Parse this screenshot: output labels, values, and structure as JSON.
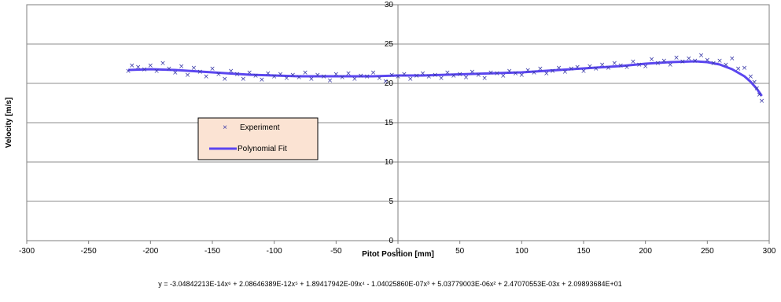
{
  "chart_data": {
    "type": "scatter",
    "xlabel": "Pitot Position  [mm]",
    "ylabel": "Velocity [m/s]",
    "xlim": [
      -300,
      300
    ],
    "ylim": [
      0,
      30
    ],
    "x_ticks": [
      -300,
      -250,
      -200,
      -150,
      -100,
      -50,
      0,
      50,
      100,
      150,
      200,
      250,
      300
    ],
    "y_ticks": [
      0,
      5,
      10,
      15,
      20,
      25,
      30
    ],
    "grid": "horizontal",
    "equation": "y = -3.04842213E-14x⁶ + 2.08646389E-12x⁵ + 1.89417942E-09x⁴ - 1.04025860E-07x³ + 5.03779003E-06x² + 2.47070553E-03x + 2.09893684E+01",
    "legend": {
      "position": "left",
      "entries": [
        "Experiment",
        "Polynomial Fit"
      ]
    },
    "colors": {
      "marker": "#3a3aa8",
      "fit": "#5b46f0",
      "legend_bg": "#fbe3d3",
      "grid": "#8c8c8c"
    },
    "series": [
      {
        "name": "Experiment",
        "marker": "x",
        "x": [
          -218,
          -215,
          -210,
          -205,
          -200,
          -195,
          -190,
          -185,
          -180,
          -175,
          -170,
          -165,
          -160,
          -155,
          -150,
          -145,
          -140,
          -135,
          -130,
          -125,
          -120,
          -115,
          -110,
          -105,
          -100,
          -95,
          -90,
          -85,
          -80,
          -75,
          -70,
          -65,
          -60,
          -55,
          -50,
          -45,
          -40,
          -35,
          -30,
          -25,
          -20,
          -15,
          -10,
          -5,
          0,
          5,
          10,
          15,
          20,
          25,
          30,
          35,
          40,
          45,
          50,
          55,
          60,
          65,
          70,
          75,
          80,
          85,
          90,
          95,
          100,
          105,
          110,
          115,
          120,
          125,
          130,
          135,
          140,
          145,
          150,
          155,
          160,
          165,
          170,
          175,
          180,
          185,
          190,
          195,
          200,
          205,
          210,
          215,
          220,
          225,
          230,
          235,
          240,
          245,
          250,
          255,
          260,
          265,
          270,
          275,
          280,
          285,
          288,
          290,
          292,
          294
        ],
        "y": [
          21.6,
          22.3,
          22.1,
          21.8,
          22.3,
          21.6,
          22.6,
          21.9,
          21.4,
          22.2,
          21.1,
          22.0,
          21.5,
          20.9,
          21.9,
          21.2,
          20.6,
          21.6,
          21.2,
          20.6,
          21.4,
          21.0,
          20.5,
          21.3,
          20.9,
          21.2,
          20.7,
          21.1,
          20.8,
          21.4,
          20.6,
          21.1,
          20.9,
          20.4,
          21.2,
          20.8,
          21.3,
          20.6,
          21.0,
          20.9,
          21.4,
          20.7,
          20.3,
          21.1,
          20.9,
          21.2,
          20.6,
          21.0,
          21.3,
          20.9,
          21.1,
          20.7,
          21.4,
          21.0,
          21.2,
          20.8,
          21.5,
          21.1,
          20.7,
          21.4,
          21.3,
          21.0,
          21.6,
          21.3,
          21.1,
          21.7,
          21.4,
          21.9,
          21.3,
          21.6,
          22.0,
          21.5,
          21.9,
          22.1,
          21.6,
          22.2,
          21.9,
          22.4,
          22.0,
          22.6,
          22.3,
          22.1,
          22.8,
          22.4,
          22.2,
          23.1,
          22.6,
          22.9,
          22.4,
          23.3,
          22.8,
          23.2,
          22.9,
          23.6,
          23.0,
          22.6,
          22.9,
          22.4,
          23.2,
          21.9,
          22.0,
          20.9,
          20.2,
          19.4,
          18.6,
          17.8
        ]
      },
      {
        "name": "Polynomial Fit",
        "line": true,
        "x": [
          -218,
          -200,
          -180,
          -160,
          -140,
          -120,
          -100,
          -80,
          -60,
          -40,
          -20,
          0,
          20,
          40,
          60,
          80,
          100,
          120,
          140,
          160,
          180,
          200,
          220,
          240,
          250,
          260,
          270,
          280,
          285,
          290,
          294
        ],
        "y": [
          21.7,
          21.8,
          21.7,
          21.5,
          21.3,
          21.1,
          21.0,
          20.9,
          20.9,
          20.9,
          20.9,
          21.0,
          21.0,
          21.1,
          21.2,
          21.3,
          21.4,
          21.6,
          21.8,
          22.0,
          22.2,
          22.5,
          22.7,
          22.8,
          22.7,
          22.4,
          21.8,
          20.9,
          20.2,
          19.3,
          18.4
        ]
      }
    ]
  }
}
